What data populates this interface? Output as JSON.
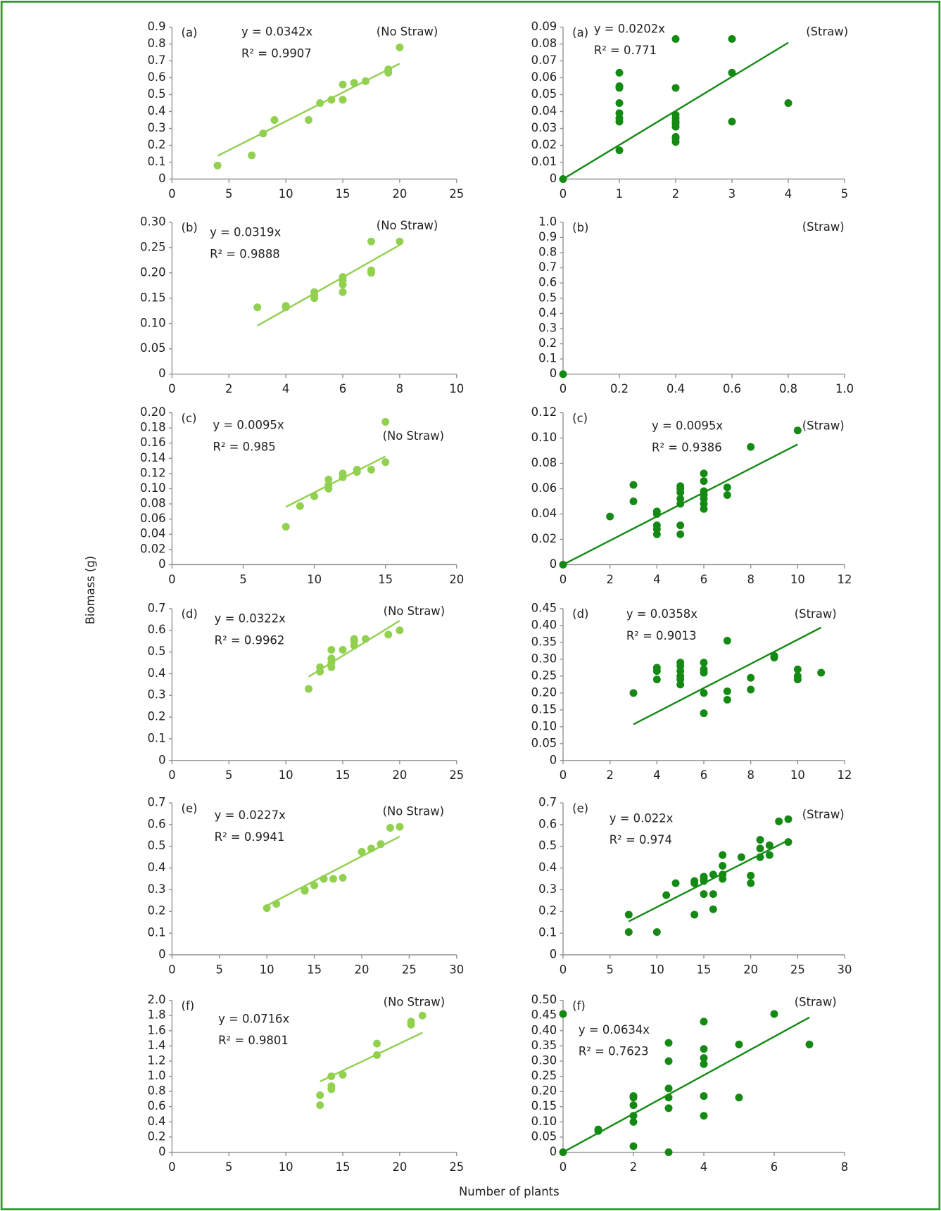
{
  "x_axis_label": "Number of plants",
  "y_axis_label": "Biomass (g)",
  "chart_data": [
    {
      "type": "scatter",
      "panel": "(a)",
      "condition": "(No Straw)",
      "equation": "y = 0.0342x",
      "r_squared": "R² = 0.9907",
      "color": "#92d050",
      "x": [
        4,
        7,
        8,
        8,
        9,
        12,
        13,
        14,
        15,
        15,
        16,
        17,
        19,
        19,
        20
      ],
      "values": [
        0.08,
        0.14,
        0.27,
        0.27,
        0.35,
        0.35,
        0.45,
        0.47,
        0.47,
        0.56,
        0.57,
        0.58,
        0.63,
        0.65,
        0.78
      ],
      "trendline": {
        "x": [
          4,
          20
        ],
        "values": [
          0.137,
          0.684
        ]
      },
      "xlim": [
        0,
        25
      ],
      "xticks": [
        0,
        5,
        10,
        15,
        20,
        25
      ],
      "ylim": [
        0,
        0.9
      ],
      "yticks": [
        0,
        0.1,
        0.2,
        0.3,
        0.4,
        0.5,
        0.6,
        0.7,
        0.8,
        0.9
      ]
    },
    {
      "type": "scatter",
      "panel": "(a)",
      "condition": "(Straw)",
      "equation": "y = 0.0202x",
      "r_squared": "R² = 0.771",
      "color": "#148a14",
      "x": [
        0,
        1,
        1,
        1,
        1,
        1,
        1,
        1,
        1,
        2,
        2,
        2,
        2,
        2,
        2,
        2,
        2,
        2,
        2,
        3,
        3,
        3,
        4
      ],
      "values": [
        0,
        0.017,
        0.034,
        0.036,
        0.039,
        0.045,
        0.054,
        0.055,
        0.063,
        0.022,
        0.024,
        0.025,
        0.031,
        0.033,
        0.034,
        0.036,
        0.038,
        0.054,
        0.083,
        0.034,
        0.063,
        0.083,
        0.045
      ],
      "trendline": {
        "x": [
          0,
          4
        ],
        "values": [
          0,
          0.0808
        ]
      },
      "xlim": [
        0,
        5
      ],
      "xticks": [
        0,
        1,
        2,
        3,
        4,
        5
      ],
      "ylim": [
        0,
        0.09
      ],
      "yticks": [
        0,
        0.01,
        0.02,
        0.03,
        0.04,
        0.05,
        0.06,
        0.07,
        0.08,
        0.09
      ]
    },
    {
      "type": "scatter",
      "panel": "(b)",
      "condition": "(No Straw)",
      "equation": "y = 0.0319x",
      "r_squared": "R² = 0.9888",
      "color": "#92d050",
      "x": [
        3,
        4,
        4,
        5,
        5,
        5,
        6,
        6,
        6,
        6,
        7,
        7,
        7,
        8
      ],
      "values": [
        0.132,
        0.132,
        0.135,
        0.15,
        0.155,
        0.162,
        0.162,
        0.177,
        0.185,
        0.192,
        0.2,
        0.205,
        0.262,
        0.262
      ],
      "trendline": {
        "x": [
          3,
          8
        ],
        "values": [
          0.0957,
          0.255
        ]
      },
      "xlim": [
        0,
        10
      ],
      "xticks": [
        0,
        2,
        4,
        6,
        8,
        10
      ],
      "ylim": [
        0,
        0.3
      ],
      "yticks": [
        0,
        0.05,
        {
          "value": 0.1,
          "label": "0.10"
        },
        0.15,
        {
          "value": 0.2,
          "label": "0.20"
        },
        0.25,
        {
          "value": 0.3,
          "label": "0.30"
        }
      ]
    },
    {
      "type": "scatter",
      "panel": "(b)",
      "condition": "(Straw)",
      "color": "#148a14",
      "x": [
        0
      ],
      "values": [
        0
      ],
      "xlim": [
        0,
        1
      ],
      "xticks": [
        0,
        0.2,
        0.4,
        0.6,
        0.8,
        {
          "value": 1,
          "label": "1.0"
        }
      ],
      "ylim": [
        0,
        1
      ],
      "yticks": [
        0,
        0.1,
        0.2,
        0.3,
        0.4,
        0.5,
        0.6,
        0.7,
        0.8,
        0.9,
        {
          "value": 1,
          "label": "1.0"
        }
      ]
    },
    {
      "type": "scatter",
      "panel": "(c)",
      "condition": "(No Straw)",
      "equation": "y = 0.0095x",
      "r_squared": "R² = 0.985",
      "color": "#92d050",
      "x": [
        8,
        9,
        10,
        11,
        11,
        11,
        12,
        12,
        13,
        13,
        14,
        15,
        15
      ],
      "values": [
        0.05,
        0.077,
        0.09,
        0.1,
        0.105,
        0.112,
        0.115,
        0.12,
        0.122,
        0.125,
        0.125,
        0.135,
        0.188
      ],
      "trendline": {
        "x": [
          8,
          15
        ],
        "values": [
          0.076,
          0.1425
        ]
      },
      "xlim": [
        0,
        20
      ],
      "xticks": [
        0,
        5,
        10,
        15,
        20
      ],
      "ylim": [
        0,
        0.2
      ],
      "yticks": [
        0,
        0.02,
        0.04,
        0.06,
        0.08,
        {
          "value": 0.1,
          "label": "0.10"
        },
        0.12,
        0.14,
        0.16,
        0.18,
        {
          "value": 0.2,
          "label": "0.20"
        }
      ]
    },
    {
      "type": "scatter",
      "panel": "(c)",
      "condition": "(Straw)",
      "equation": "y = 0.0095x",
      "r_squared": "R² = 0.9386",
      "color": "#148a14",
      "x": [
        0,
        2,
        3,
        3,
        4,
        4,
        4,
        4,
        4,
        5,
        5,
        5,
        5,
        5,
        5,
        5,
        6,
        6,
        6,
        6,
        6,
        6,
        6,
        7,
        7,
        8,
        10
      ],
      "values": [
        0,
        0.038,
        0.05,
        0.063,
        0.024,
        0.028,
        0.031,
        0.04,
        0.042,
        0.024,
        0.031,
        0.048,
        0.052,
        0.057,
        0.06,
        0.062,
        0.044,
        0.048,
        0.052,
        0.055,
        0.058,
        0.066,
        0.072,
        0.055,
        0.061,
        0.093,
        0.106
      ],
      "trendline": {
        "x": [
          0,
          10
        ],
        "values": [
          0,
          0.095
        ]
      },
      "xlim": [
        0,
        12
      ],
      "xticks": [
        0,
        2,
        4,
        6,
        8,
        10,
        12
      ],
      "ylim": [
        0,
        0.12
      ],
      "yticks": [
        0,
        0.02,
        0.04,
        0.06,
        0.08,
        {
          "value": 0.1,
          "label": "0.10"
        },
        0.12
      ]
    },
    {
      "type": "scatter",
      "panel": "(d)",
      "condition": "(No Straw)",
      "equation": "y = 0.0322x",
      "r_squared": "R² = 0.9962",
      "color": "#92d050",
      "x": [
        12,
        13,
        13,
        14,
        14,
        14,
        14,
        15,
        16,
        16,
        16,
        17,
        19,
        20
      ],
      "values": [
        0.33,
        0.41,
        0.43,
        0.43,
        0.45,
        0.47,
        0.51,
        0.51,
        0.53,
        0.55,
        0.56,
        0.56,
        0.58,
        0.6
      ],
      "trendline": {
        "x": [
          12,
          20
        ],
        "values": [
          0.386,
          0.644
        ]
      },
      "xlim": [
        0,
        25
      ],
      "xticks": [
        0,
        5,
        10,
        15,
        20,
        25
      ],
      "ylim": [
        0,
        0.7
      ],
      "yticks": [
        0,
        0.1,
        0.2,
        0.3,
        0.4,
        0.5,
        0.6,
        0.7
      ]
    },
    {
      "type": "scatter",
      "panel": "(d)",
      "condition": "(Straw)",
      "equation": "y = 0.0358x",
      "r_squared": "R² = 0.9013",
      "color": "#148a14",
      "x": [
        3,
        4,
        4,
        4,
        5,
        5,
        5,
        5,
        5,
        5,
        6,
        6,
        6,
        6,
        6,
        7,
        7,
        7,
        8,
        8,
        9,
        9,
        10,
        10,
        10,
        11
      ],
      "values": [
        0.2,
        0.24,
        0.265,
        0.275,
        0.225,
        0.24,
        0.25,
        0.265,
        0.28,
        0.29,
        0.14,
        0.2,
        0.26,
        0.27,
        0.29,
        0.18,
        0.205,
        0.355,
        0.21,
        0.245,
        0.305,
        0.31,
        0.24,
        0.25,
        0.27,
        0.26
      ],
      "trendline": {
        "x": [
          3,
          11
        ],
        "values": [
          0.107,
          0.394
        ]
      },
      "xlim": [
        0,
        12
      ],
      "xticks": [
        0,
        2,
        4,
        6,
        8,
        10,
        12
      ],
      "ylim": [
        0,
        0.45
      ],
      "yticks": [
        0,
        0.05,
        {
          "value": 0.1,
          "label": "0.10"
        },
        0.15,
        {
          "value": 0.2,
          "label": "0.20"
        },
        0.25,
        {
          "value": 0.3,
          "label": "0.30"
        },
        0.35,
        {
          "value": 0.4,
          "label": "0.40"
        },
        0.45
      ]
    },
    {
      "type": "scatter",
      "panel": "(e)",
      "condition": "(No Straw)",
      "equation": "y = 0.0227x",
      "r_squared": "R² = 0.9941",
      "color": "#92d050",
      "x": [
        10,
        11,
        14,
        14,
        15,
        16,
        17,
        18,
        20,
        21,
        22,
        23,
        24
      ],
      "values": [
        0.215,
        0.235,
        0.295,
        0.3,
        0.32,
        0.35,
        0.35,
        0.355,
        0.475,
        0.49,
        0.51,
        0.585,
        0.59
      ],
      "trendline": {
        "x": [
          10,
          24
        ],
        "values": [
          0.227,
          0.545
        ]
      },
      "xlim": [
        0,
        30
      ],
      "xticks": [
        0,
        5,
        10,
        15,
        20,
        25,
        30
      ],
      "ylim": [
        0,
        0.7
      ],
      "yticks": [
        0,
        0.1,
        0.2,
        0.3,
        0.4,
        0.5,
        0.6,
        0.7
      ]
    },
    {
      "type": "scatter",
      "panel": "(e)",
      "condition": "(Straw)",
      "equation": "y = 0.022x",
      "r_squared": "R² = 0.974",
      "color": "#148a14",
      "x": [
        7,
        7,
        10,
        11,
        12,
        14,
        14,
        14,
        15,
        15,
        15,
        15,
        16,
        16,
        16,
        17,
        17,
        17,
        17,
        19,
        20,
        20,
        21,
        21,
        21,
        22,
        22,
        23,
        24,
        24
      ],
      "values": [
        0.105,
        0.185,
        0.105,
        0.275,
        0.33,
        0.185,
        0.33,
        0.34,
        0.28,
        0.34,
        0.35,
        0.36,
        0.21,
        0.28,
        0.37,
        0.35,
        0.37,
        0.41,
        0.46,
        0.45,
        0.33,
        0.365,
        0.45,
        0.49,
        0.53,
        0.46,
        0.505,
        0.615,
        0.52,
        0.625
      ],
      "trendline": {
        "x": [
          7,
          24
        ],
        "values": [
          0.154,
          0.528
        ]
      },
      "xlim": [
        0,
        30
      ],
      "xticks": [
        0,
        5,
        10,
        15,
        20,
        25,
        30
      ],
      "ylim": [
        0,
        0.7
      ],
      "yticks": [
        0,
        0.1,
        0.2,
        0.3,
        0.4,
        0.5,
        0.6,
        0.7
      ]
    },
    {
      "type": "scatter",
      "panel": "(f)",
      "condition": "(No Straw)",
      "equation": "y = 0.0716x",
      "r_squared": "R² = 0.9801",
      "color": "#92d050",
      "x": [
        13,
        13,
        14,
        14,
        14,
        15,
        18,
        18,
        21,
        21,
        22
      ],
      "values": [
        0.62,
        0.75,
        0.83,
        0.87,
        1.0,
        1.02,
        1.28,
        1.43,
        1.68,
        1.72,
        1.8
      ],
      "trendline": {
        "x": [
          13,
          22
        ],
        "values": [
          0.931,
          1.575
        ]
      },
      "xlim": [
        0,
        25
      ],
      "xticks": [
        0,
        5,
        10,
        15,
        20,
        25
      ],
      "ylim": [
        0,
        2
      ],
      "yticks": [
        0,
        0.2,
        0.4,
        0.6,
        0.8,
        {
          "value": 1,
          "label": "1.0"
        },
        1.2,
        1.4,
        1.6,
        1.8,
        {
          "value": 2,
          "label": "2.0"
        }
      ]
    },
    {
      "type": "scatter",
      "panel": "(f)",
      "condition": "(Straw)",
      "equation": "y = 0.0634x",
      "r_squared": "R² = 0.7623",
      "color": "#148a14",
      "x": [
        0,
        0,
        1,
        1,
        2,
        2,
        2,
        2,
        2,
        2,
        3,
        3,
        3,
        3,
        3,
        3,
        4,
        4,
        4,
        4,
        4,
        4,
        5,
        5,
        6,
        7
      ],
      "values": [
        0,
        0.455,
        0.07,
        0.075,
        0.02,
        0.1,
        0.12,
        0.155,
        0.18,
        0.185,
        0,
        0.145,
        0.18,
        0.21,
        0.3,
        0.36,
        0.12,
        0.185,
        0.29,
        0.31,
        0.34,
        0.43,
        0.18,
        0.355,
        0.455,
        0.355
      ],
      "trendline": {
        "x": [
          0,
          7
        ],
        "values": [
          0,
          0.4438
        ]
      },
      "xlim": [
        0,
        8
      ],
      "xticks": [
        0,
        2,
        4,
        6,
        8
      ],
      "ylim": [
        0,
        0.5
      ],
      "yticks": [
        0,
        0.05,
        {
          "value": 0.1,
          "label": "0.10"
        },
        0.15,
        {
          "value": 0.2,
          "label": "0.20"
        },
        0.25,
        {
          "value": 0.3,
          "label": "0.30"
        },
        0.35,
        {
          "value": 0.4,
          "label": "0.40"
        },
        0.45,
        {
          "value": 0.5,
          "label": "0.50"
        }
      ]
    }
  ]
}
